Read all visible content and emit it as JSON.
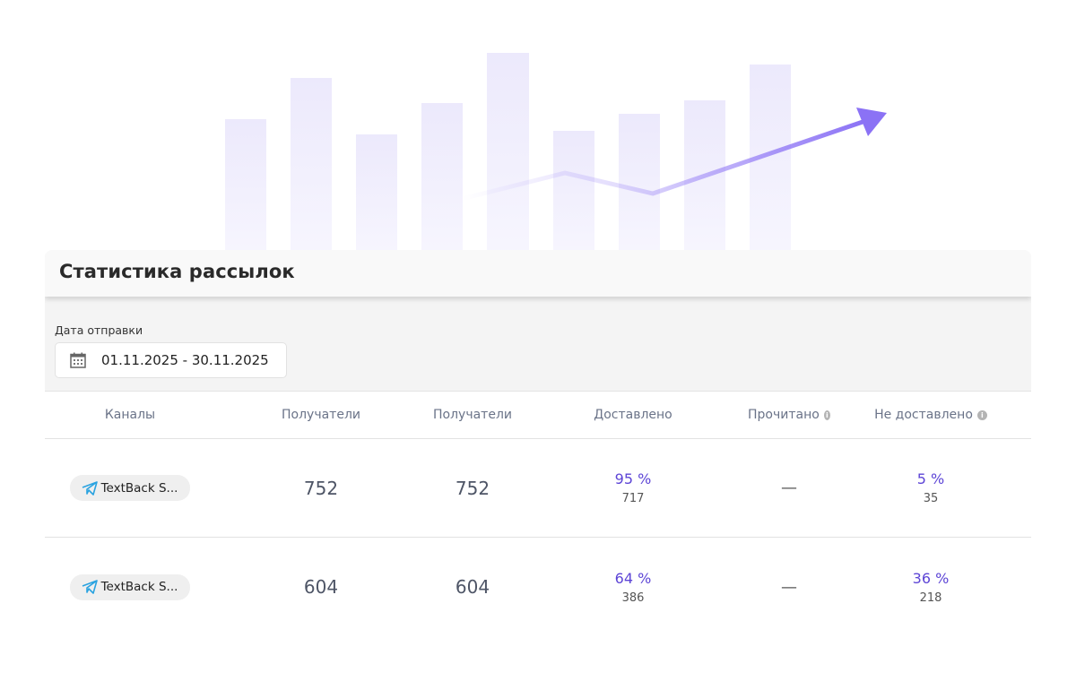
{
  "card": {
    "title": "Статистика рассылок"
  },
  "filters": {
    "date_label": "Дата отправки",
    "date_value": "01.11.2025 - 30.11.2025"
  },
  "table": {
    "headers": [
      "Каналы",
      "Получатели",
      "Получатели",
      "Доставлено",
      "Прочитано",
      "Не доставлено"
    ],
    "rows": [
      {
        "channel": "TextBack S...",
        "recipients_a": "752",
        "recipients_b": "752",
        "delivered_pct": "95 %",
        "delivered_count": "717",
        "read": "—",
        "undelivered_pct": "5 %",
        "undelivered_count": "35"
      },
      {
        "channel": "TextBack S...",
        "recipients_a": "604",
        "recipients_b": "604",
        "delivered_pct": "64 %",
        "delivered_count": "386",
        "read": "—",
        "undelivered_pct": "36 %",
        "undelivered_count": "218"
      }
    ]
  },
  "colors": {
    "accent": "#5d45d6",
    "arrow": "#8b72f5",
    "bars": "#efedfc",
    "telegram": "#2aa3e0"
  }
}
